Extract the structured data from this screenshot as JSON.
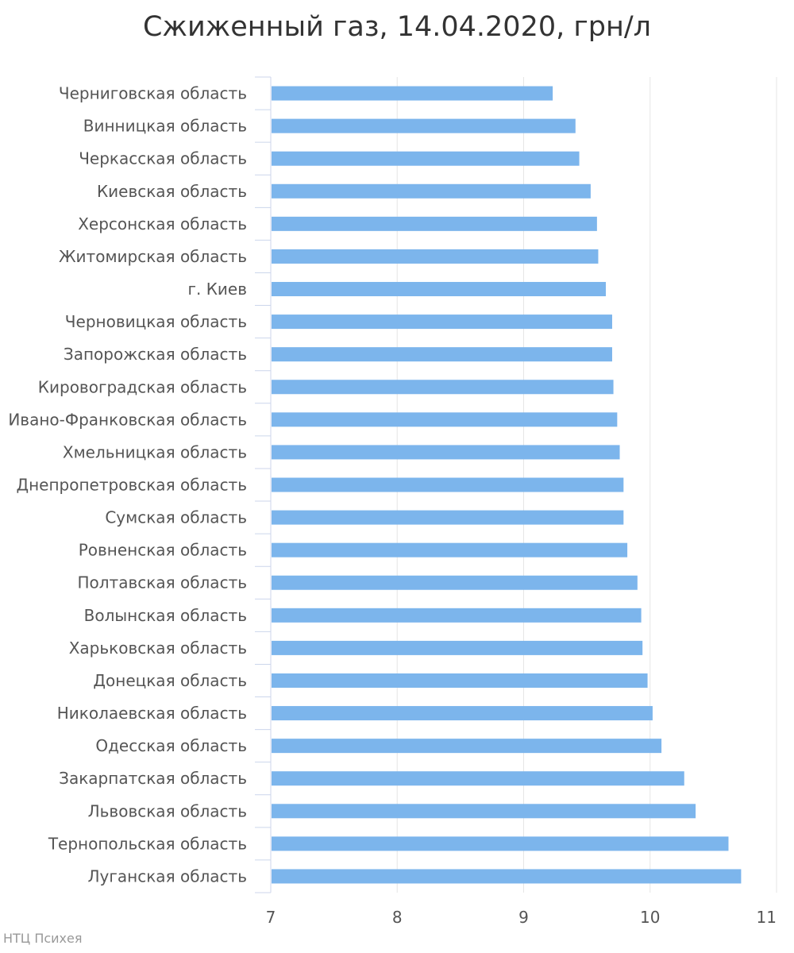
{
  "chart_data": {
    "type": "bar",
    "orientation": "horizontal",
    "title": "Сжиженный газ, 14.04.2020, грн/л",
    "credit": "НТЦ Психея",
    "categories": [
      "Черниговская область",
      "Винницкая область",
      "Черкасская область",
      "Киевская область",
      "Херсонская область",
      "Житомирская область",
      "г. Киев",
      "Черновицкая область",
      "Запорожская область",
      "Кировоградская область",
      "Ивано-Франковская область",
      "Хмельницкая область",
      "Днепропетровская область",
      "Сумская область",
      "Ровненская область",
      "Полтавская область",
      "Волынская область",
      "Харьковская область",
      "Донецкая область",
      "Николаевская область",
      "Одесская область",
      "Закарпатская область",
      "Львовская область",
      "Тернопольская область",
      "Луганская область"
    ],
    "values": [
      9.23,
      9.41,
      9.44,
      9.53,
      9.58,
      9.59,
      9.65,
      9.7,
      9.7,
      9.71,
      9.74,
      9.76,
      9.79,
      9.79,
      9.82,
      9.9,
      9.93,
      9.94,
      9.98,
      10.02,
      10.09,
      10.27,
      10.36,
      10.62,
      10.72
    ],
    "xlim": [
      7,
      11
    ],
    "xticks": [
      "7",
      "8",
      "9",
      "10",
      "11"
    ],
    "grid": true,
    "bar_color": "#7cb5ec"
  }
}
